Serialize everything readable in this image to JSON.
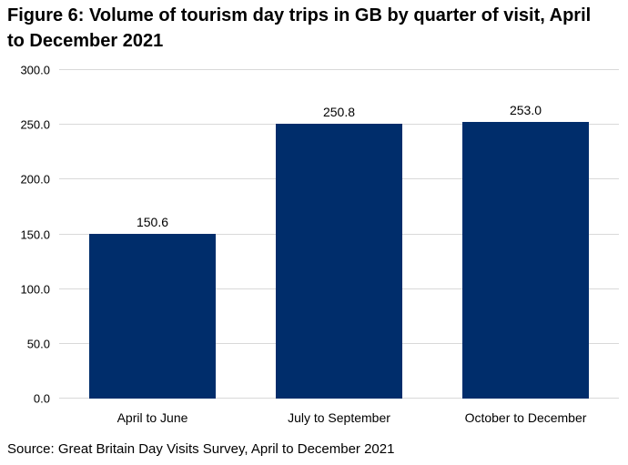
{
  "title": "Figure 6: Volume of tourism day trips in GB by quarter of visit, April to December 2021",
  "source": "Source: Great Britain Day Visits Survey, April to December 2021",
  "colors": {
    "bar": "#002d6b",
    "gridline": "#d9d9d9",
    "text": "#000000",
    "background": "#ffffff"
  },
  "chart_data": {
    "type": "bar",
    "title": "Figure 6: Volume of tourism day trips in GB by quarter of visit, April to December 2021",
    "categories": [
      "April to June",
      "July to September",
      "October to December"
    ],
    "values": [
      150.6,
      250.8,
      253.0
    ],
    "data_labels": [
      "150.6",
      "250.8",
      "253.0"
    ],
    "xlabel": "",
    "ylabel": "",
    "ylim": [
      0,
      300
    ],
    "yticks": [
      0,
      50,
      100,
      150,
      200,
      250,
      300
    ],
    "ytick_labels": [
      "0.0",
      "50.0",
      "100.0",
      "150.0",
      "200.0",
      "250.0",
      "300.0"
    ],
    "grid": true,
    "legend": false,
    "source": "Source: Great Britain Day Visits Survey, April to December 2021"
  }
}
